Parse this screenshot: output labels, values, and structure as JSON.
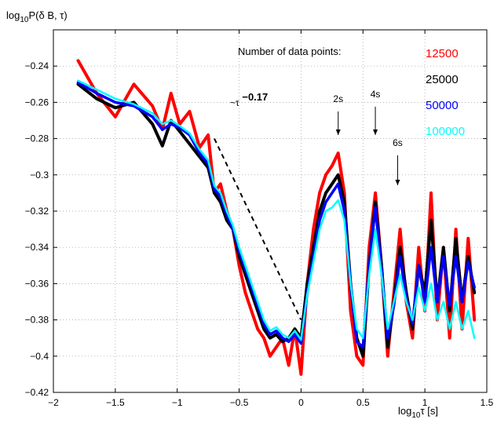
{
  "chart_data": {
    "type": "line",
    "title": "",
    "ylabel": {
      "base": "log",
      "sub": "10",
      "rest": "P(δ B, τ)"
    },
    "xlabel": {
      "base": "log",
      "sub": "10",
      "rest": "τ  [s]"
    },
    "xlim": [
      -2,
      1.5
    ],
    "ylim": [
      -0.42,
      -0.22
    ],
    "x_ticks": [
      -2,
      -1.5,
      -1,
      -0.5,
      0,
      0.5,
      1,
      1.5
    ],
    "x_tick_labels": [
      "−2",
      "−1.5",
      "−1",
      "−0.5",
      "0",
      "0.5",
      "1",
      "1.5"
    ],
    "y_ticks": [
      -0.42,
      -0.4,
      -0.38,
      -0.36,
      -0.34,
      -0.32,
      -0.3,
      -0.28,
      -0.26,
      -0.24
    ],
    "y_tick_labels": [
      "−0.42",
      "−0.4",
      "−0.38",
      "−0.36",
      "−0.34",
      "−0.32",
      "−0.3",
      "−0.28",
      "−0.26",
      "−0.24"
    ],
    "grid": true,
    "legend": {
      "title": "Number of data points:",
      "placement": "top-right",
      "entries": [
        {
          "label": "12500",
          "color": "#ff0000"
        },
        {
          "label": "25000",
          "color": "#000000"
        },
        {
          "label": "50000",
          "color": "#0000ff"
        },
        {
          "label": "100000",
          "color": "#00ffff"
        }
      ]
    },
    "series": [
      {
        "legend_label": "12500",
        "color": "#ff0000",
        "width": 4,
        "x": [
          -1.8,
          -1.65,
          -1.5,
          -1.35,
          -1.2,
          -1.12,
          -1.05,
          -0.98,
          -0.9,
          -0.82,
          -0.75,
          -0.7,
          -0.65,
          -0.6,
          -0.55,
          -0.5,
          -0.45,
          -0.4,
          -0.35,
          -0.3,
          -0.25,
          -0.2,
          -0.15,
          -0.1,
          -0.05,
          0.0,
          0.05,
          0.1,
          0.15,
          0.2,
          0.25,
          0.3,
          0.35,
          0.4,
          0.45,
          0.5,
          0.55,
          0.6,
          0.65,
          0.7,
          0.75,
          0.8,
          0.85,
          0.9,
          0.95,
          1.0,
          1.05,
          1.1,
          1.15,
          1.2,
          1.25,
          1.3,
          1.35,
          1.4
        ],
        "y": [
          -0.237,
          -0.255,
          -0.268,
          -0.25,
          -0.262,
          -0.275,
          -0.255,
          -0.272,
          -0.265,
          -0.285,
          -0.278,
          -0.31,
          -0.305,
          -0.32,
          -0.33,
          -0.35,
          -0.365,
          -0.375,
          -0.385,
          -0.39,
          -0.4,
          -0.395,
          -0.39,
          -0.405,
          -0.385,
          -0.41,
          -0.36,
          -0.33,
          -0.31,
          -0.3,
          -0.295,
          -0.288,
          -0.31,
          -0.375,
          -0.4,
          -0.405,
          -0.34,
          -0.31,
          -0.35,
          -0.4,
          -0.365,
          -0.33,
          -0.37,
          -0.39,
          -0.34,
          -0.375,
          -0.31,
          -0.38,
          -0.34,
          -0.39,
          -0.33,
          -0.385,
          -0.335,
          -0.38
        ]
      },
      {
        "legend_label": "25000",
        "color": "#000000",
        "width": 4,
        "x": [
          -1.8,
          -1.65,
          -1.5,
          -1.35,
          -1.2,
          -1.12,
          -1.05,
          -0.98,
          -0.9,
          -0.82,
          -0.75,
          -0.7,
          -0.65,
          -0.6,
          -0.55,
          -0.5,
          -0.45,
          -0.4,
          -0.35,
          -0.3,
          -0.25,
          -0.2,
          -0.15,
          -0.1,
          -0.05,
          0.0,
          0.05,
          0.1,
          0.15,
          0.2,
          0.25,
          0.3,
          0.35,
          0.4,
          0.45,
          0.5,
          0.55,
          0.6,
          0.65,
          0.7,
          0.75,
          0.8,
          0.85,
          0.9,
          0.95,
          1.0,
          1.05,
          1.1,
          1.15,
          1.2,
          1.25,
          1.3,
          1.35,
          1.4
        ],
        "y": [
          -0.25,
          -0.258,
          -0.263,
          -0.26,
          -0.272,
          -0.284,
          -0.27,
          -0.276,
          -0.283,
          -0.29,
          -0.296,
          -0.31,
          -0.315,
          -0.325,
          -0.33,
          -0.345,
          -0.355,
          -0.365,
          -0.375,
          -0.385,
          -0.39,
          -0.388,
          -0.392,
          -0.39,
          -0.385,
          -0.39,
          -0.36,
          -0.34,
          -0.32,
          -0.31,
          -0.305,
          -0.3,
          -0.315,
          -0.36,
          -0.39,
          -0.4,
          -0.35,
          -0.315,
          -0.35,
          -0.395,
          -0.37,
          -0.34,
          -0.365,
          -0.385,
          -0.35,
          -0.365,
          -0.325,
          -0.37,
          -0.34,
          -0.375,
          -0.335,
          -0.37,
          -0.345,
          -0.365
        ]
      },
      {
        "legend_label": "50000",
        "color": "#0000ff",
        "width": 3.5,
        "x": [
          -1.8,
          -1.65,
          -1.5,
          -1.35,
          -1.2,
          -1.12,
          -1.05,
          -0.98,
          -0.9,
          -0.82,
          -0.75,
          -0.7,
          -0.65,
          -0.6,
          -0.55,
          -0.5,
          -0.45,
          -0.4,
          -0.35,
          -0.3,
          -0.25,
          -0.2,
          -0.15,
          -0.1,
          -0.05,
          0.0,
          0.05,
          0.1,
          0.15,
          0.2,
          0.25,
          0.3,
          0.35,
          0.4,
          0.45,
          0.5,
          0.55,
          0.6,
          0.65,
          0.7,
          0.75,
          0.8,
          0.85,
          0.9,
          0.95,
          1.0,
          1.05,
          1.1,
          1.15,
          1.2,
          1.25,
          1.3,
          1.35,
          1.4
        ],
        "y": [
          -0.249,
          -0.255,
          -0.26,
          -0.262,
          -0.268,
          -0.275,
          -0.272,
          -0.274,
          -0.278,
          -0.288,
          -0.294,
          -0.308,
          -0.312,
          -0.322,
          -0.33,
          -0.342,
          -0.352,
          -0.362,
          -0.372,
          -0.382,
          -0.388,
          -0.386,
          -0.39,
          -0.392,
          -0.388,
          -0.393,
          -0.365,
          -0.345,
          -0.325,
          -0.315,
          -0.31,
          -0.305,
          -0.32,
          -0.36,
          -0.392,
          -0.395,
          -0.35,
          -0.318,
          -0.352,
          -0.39,
          -0.372,
          -0.345,
          -0.368,
          -0.382,
          -0.35,
          -0.37,
          -0.34,
          -0.37,
          -0.345,
          -0.372,
          -0.345,
          -0.37,
          -0.348,
          -0.362
        ]
      },
      {
        "legend_label": "100000",
        "color": "#00ffff",
        "width": 2.5,
        "x": [
          -1.8,
          -1.65,
          -1.5,
          -1.35,
          -1.2,
          -1.12,
          -1.05,
          -0.98,
          -0.9,
          -0.82,
          -0.75,
          -0.7,
          -0.65,
          -0.6,
          -0.55,
          -0.5,
          -0.45,
          -0.4,
          -0.35,
          -0.3,
          -0.25,
          -0.2,
          -0.15,
          -0.1,
          -0.05,
          0.0,
          0.05,
          0.1,
          0.15,
          0.2,
          0.25,
          0.3,
          0.35,
          0.4,
          0.45,
          0.5,
          0.55,
          0.6,
          0.65,
          0.7,
          0.75,
          0.8,
          0.85,
          0.9,
          0.95,
          1.0,
          1.05,
          1.1,
          1.15,
          1.2,
          1.25,
          1.3,
          1.35,
          1.4
        ],
        "y": [
          -0.248,
          -0.253,
          -0.258,
          -0.261,
          -0.266,
          -0.272,
          -0.27,
          -0.273,
          -0.277,
          -0.286,
          -0.292,
          -0.306,
          -0.31,
          -0.32,
          -0.328,
          -0.34,
          -0.35,
          -0.36,
          -0.37,
          -0.38,
          -0.386,
          -0.384,
          -0.388,
          -0.39,
          -0.386,
          -0.391,
          -0.366,
          -0.348,
          -0.33,
          -0.32,
          -0.318,
          -0.314,
          -0.325,
          -0.36,
          -0.385,
          -0.39,
          -0.355,
          -0.33,
          -0.355,
          -0.385,
          -0.37,
          -0.355,
          -0.37,
          -0.38,
          -0.362,
          -0.375,
          -0.36,
          -0.38,
          -0.37,
          -0.385,
          -0.37,
          -0.385,
          -0.375,
          -0.39
        ]
      }
    ],
    "annotations": [
      {
        "label": "2s",
        "x": 0.3
      },
      {
        "label": "4s",
        "x": 0.6
      },
      {
        "label": "6s",
        "x": 0.78
      }
    ],
    "reference_line": {
      "label_prefix": "~τ",
      "label_exp": "−0.17",
      "from": [
        -0.7,
        -0.28
      ],
      "to": [
        0.0,
        -0.38
      ]
    }
  }
}
